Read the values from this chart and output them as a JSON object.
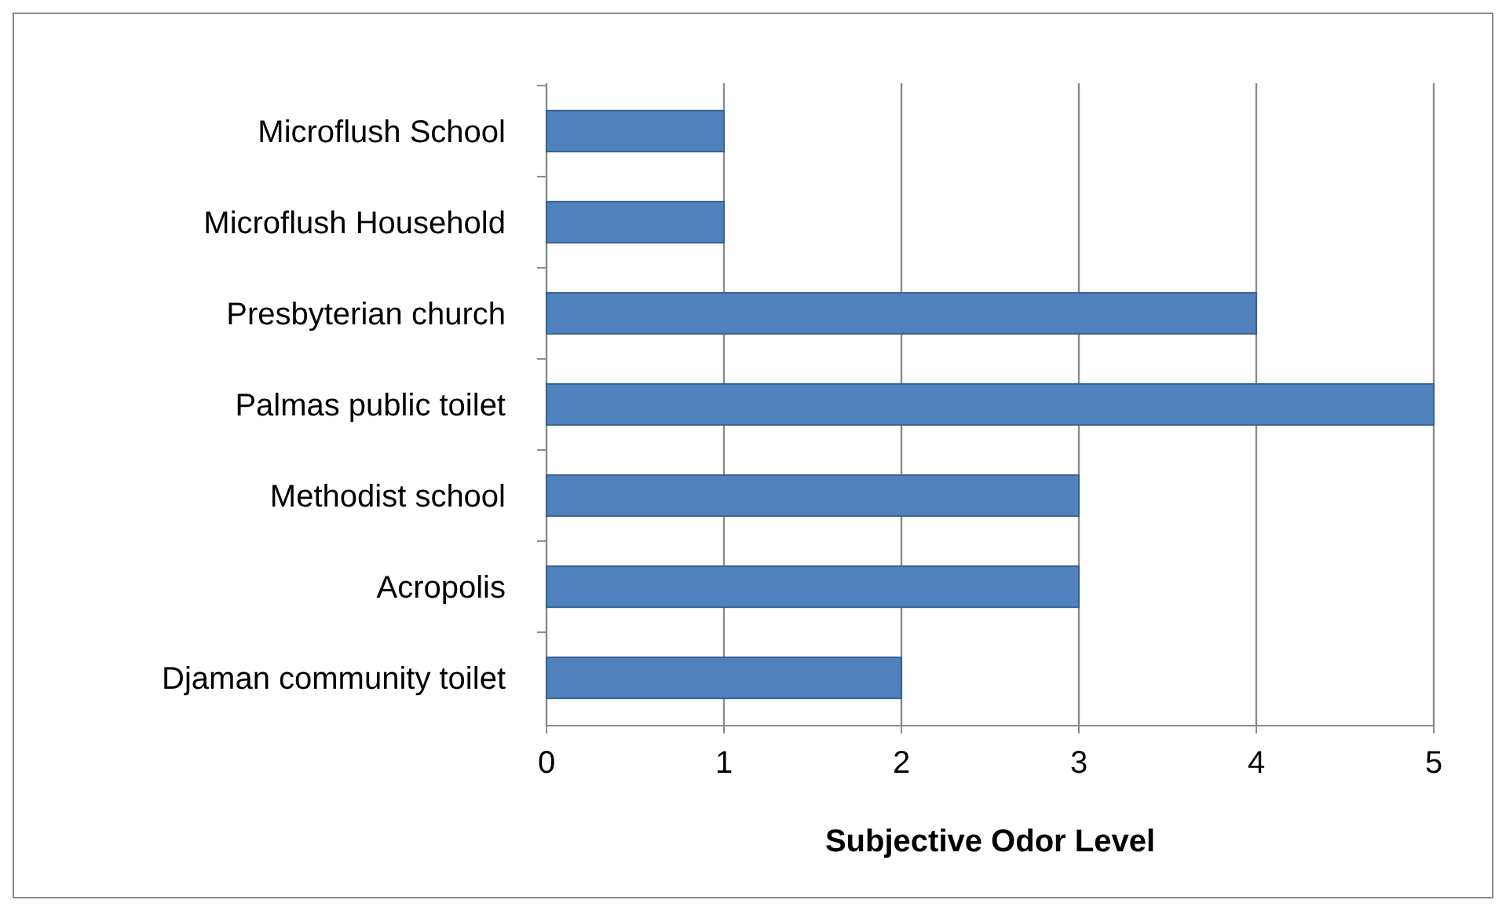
{
  "chart_data": {
    "type": "bar",
    "orientation": "horizontal",
    "xlabel": "Subjective Odor Level",
    "categories": [
      "Microflush School",
      "Microflush Household",
      "Presbyterian church",
      "Palmas public toilet",
      "Methodist school",
      "Acropolis",
      "Djaman community toilet"
    ],
    "values": [
      1,
      1,
      4,
      5,
      3,
      3,
      2
    ],
    "color": "#4f81bd",
    "xlim": [
      0,
      5
    ],
    "xticks": [
      0,
      1,
      2,
      3,
      4,
      5
    ],
    "grid": "x"
  }
}
